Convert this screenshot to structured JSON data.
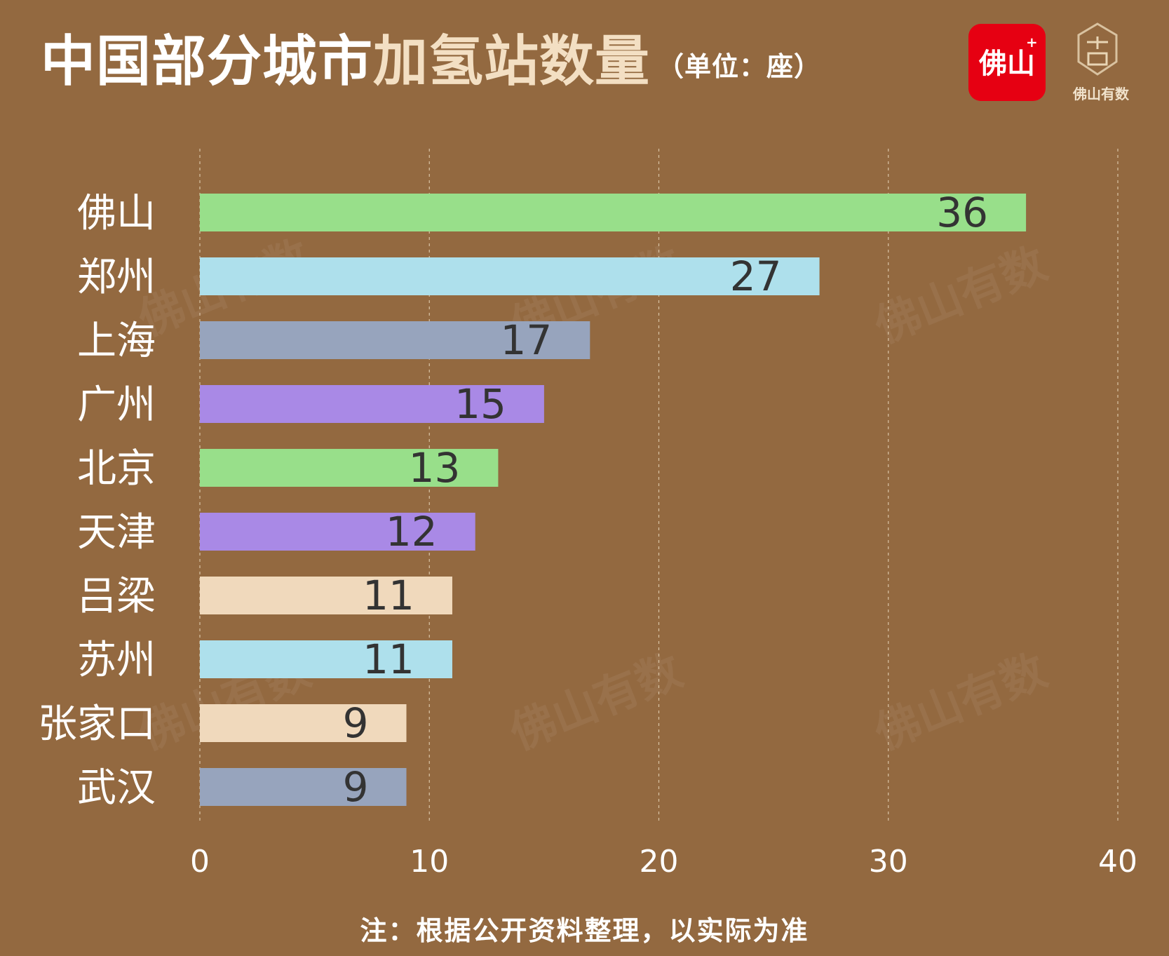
{
  "title": {
    "part1": "中国部分城市",
    "part2": "加氢站数量",
    "unit": "（单位：座）"
  },
  "logos": {
    "badge_text": "佛山",
    "badge_plus": "+",
    "brand_text": "佛山有数"
  },
  "watermark_text": "佛山有数",
  "footnote": "注：根据公开资料整理，以实际为准",
  "colors": {
    "background": "#936940",
    "green": "#98df8a",
    "light_blue": "#aee0ec",
    "slate": "#97a4bd",
    "purple": "#a989e6",
    "peach": "#f0d9bc",
    "label_dark": "#333333",
    "axis_text": "#ffffff"
  },
  "chart_data": {
    "type": "bar",
    "orientation": "horizontal",
    "categories": [
      "佛山",
      "郑州",
      "上海",
      "广州",
      "北京",
      "天津",
      "吕梁",
      "苏州",
      "张家口",
      "武汉"
    ],
    "values": [
      36,
      27,
      17,
      15,
      13,
      12,
      11,
      11,
      9,
      9
    ],
    "bar_colors": [
      "#98df8a",
      "#aee0ec",
      "#97a4bd",
      "#a989e6",
      "#98df8a",
      "#a989e6",
      "#f0d9bc",
      "#aee0ec",
      "#f0d9bc",
      "#97a4bd"
    ],
    "xlim": [
      0,
      40
    ],
    "xticks": [
      0,
      10,
      20,
      30,
      40
    ],
    "grid": "vertical dashed",
    "data_labels": true
  }
}
